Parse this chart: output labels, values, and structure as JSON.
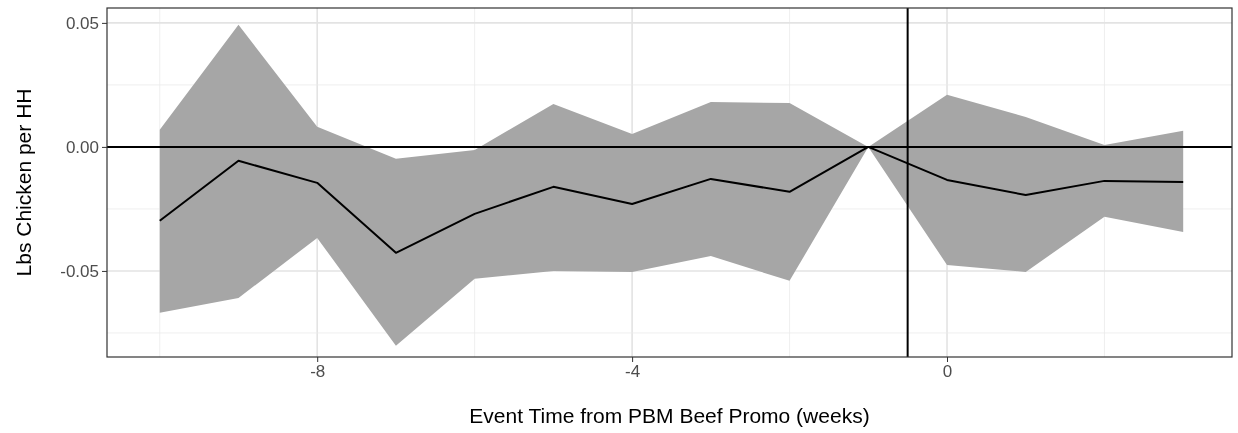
{
  "chart_data": {
    "type": "line",
    "xlabel": "Event Time from PBM Beef Promo (weeks)",
    "ylabel": "Lbs Chicken per HH",
    "x": [
      -10,
      -9,
      -8,
      -7,
      -6,
      -5,
      -4,
      -3,
      -2,
      -1,
      0,
      1,
      2,
      3
    ],
    "series": [
      {
        "color": "#000000",
        "values": [
          -0.0298,
          -0.0056,
          -0.0145,
          -0.0427,
          -0.027,
          -0.0161,
          -0.023,
          -0.0129,
          -0.0181,
          0,
          -0.0133,
          -0.0194,
          -0.0137,
          -0.0141
        ],
        "upper": [
          0.0069,
          0.0492,
          0.0081,
          -0.0048,
          -0.0012,
          0.0173,
          0.0052,
          0.0181,
          0.0177,
          0,
          0.021,
          0.0121,
          0.0008,
          0.0065
        ],
        "lower": [
          -0.0669,
          -0.0609,
          -0.0367,
          -0.0802,
          -0.0532,
          -0.05,
          -0.0504,
          -0.044,
          -0.054,
          0,
          -0.0476,
          -0.0504,
          -0.0282,
          -0.0343
        ]
      }
    ],
    "xlim": [
      -10.67,
      3.62
    ],
    "xticks": [
      -8,
      -4,
      0
    ],
    "ylim": [
      -0.0847,
      0.056
    ],
    "yticks": [
      {
        "value": -0.05,
        "label": "-0.05"
      },
      {
        "value": 0,
        "label": "0.00"
      },
      {
        "value": 0.05,
        "label": "0.05"
      }
    ],
    "grid": true,
    "line_style": "solid",
    "marker": "none",
    "ref_lines": [
      {
        "axis": "y",
        "value": 0,
        "color": "#000000"
      },
      {
        "axis": "x",
        "value": -0.5,
        "color": "#000000"
      }
    ]
  }
}
